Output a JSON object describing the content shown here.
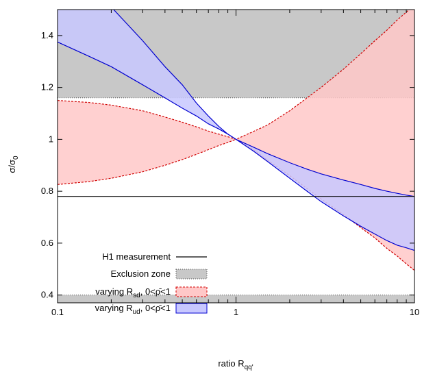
{
  "chart_data": {
    "type": "area",
    "title": "",
    "xlabel": {
      "base": "ratio R",
      "sub": "qq'"
    },
    "ylabel": {
      "base": "σ/σ",
      "sub": "0"
    },
    "x_scale": "log",
    "xlim": [
      0.1,
      10
    ],
    "ylim": [
      0.37,
      1.5
    ],
    "x_ticks": [
      0.1,
      1,
      10
    ],
    "x_tick_labels": [
      "0.1",
      "1",
      "10"
    ],
    "y_ticks": [
      0.4,
      0.6,
      0.8,
      1.0,
      1.2,
      1.4
    ],
    "y_tick_labels": [
      "0.4",
      "0.6",
      "0.8",
      "1",
      "1.2",
      "1.4"
    ],
    "grid": false,
    "legend_position": "bottom-left",
    "colors": {
      "exclusion_fill": "#c8c8c8",
      "sd_fill": "#ffc8c8",
      "sd_line": "#d00000",
      "ud_fill": "#c8c8ff",
      "ud_line": "#0000d0",
      "h1_line": "#000000"
    },
    "h1_measurement": 0.78,
    "exclusion_zone": {
      "upper_start": 1.16,
      "lower_end": 0.4
    },
    "series": [
      {
        "name": "varying R_sd, 0<ρ̄<1",
        "label_parts": [
          "varying R",
          "sd",
          ", 0<",
          "ρ̄",
          "<1"
        ],
        "style": "dashed",
        "x": [
          0.1,
          0.15,
          0.2,
          0.3,
          0.4,
          0.5,
          0.6,
          0.7,
          0.8,
          0.9,
          1,
          1.25,
          1.5,
          2,
          2.5,
          3,
          4,
          5,
          6,
          7,
          8,
          9,
          10
        ],
        "lower": [
          0.826,
          0.837,
          0.85,
          0.875,
          0.9,
          0.922,
          0.942,
          0.96,
          0.976,
          0.988,
          1.0,
          0.96,
          0.92,
          0.86,
          0.81,
          0.77,
          0.71,
          0.66,
          0.62,
          0.58,
          0.55,
          0.52,
          0.495
        ],
        "upper": [
          1.15,
          1.142,
          1.132,
          1.11,
          1.086,
          1.066,
          1.048,
          1.032,
          1.02,
          1.01,
          1.0,
          1.03,
          1.055,
          1.11,
          1.16,
          1.2,
          1.27,
          1.33,
          1.38,
          1.42,
          1.46,
          1.49,
          1.52
        ]
      },
      {
        "name": "varying R_ud, 0<ρ̄<1",
        "label_parts": [
          "varying R",
          "ud",
          ", 0<",
          "ρ̄",
          "<1"
        ],
        "style": "solid",
        "x": [
          0.1,
          0.15,
          0.2,
          0.3,
          0.4,
          0.5,
          0.6,
          0.7,
          0.8,
          0.9,
          1,
          1.25,
          1.5,
          2,
          2.5,
          3,
          4,
          5,
          6,
          7,
          8,
          9,
          10
        ],
        "lower": [
          1.375,
          1.32,
          1.28,
          1.21,
          1.16,
          1.12,
          1.09,
          1.06,
          1.04,
          1.02,
          1.0,
          0.955,
          0.915,
          0.85,
          0.8,
          0.76,
          0.705,
          0.665,
          0.635,
          0.61,
          0.592,
          0.582,
          0.572
        ],
        "upper": [
          1.6,
          1.56,
          1.51,
          1.38,
          1.28,
          1.21,
          1.14,
          1.09,
          1.05,
          1.02,
          1.0,
          0.97,
          0.945,
          0.91,
          0.885,
          0.867,
          0.843,
          0.826,
          0.811,
          0.8,
          0.792,
          0.785,
          0.78
        ]
      }
    ],
    "legend": [
      {
        "key": "h1",
        "text": "H1 measurement"
      },
      {
        "key": "exclusion",
        "text": "Exclusion zone"
      },
      {
        "key": "sd",
        "parts": [
          "varying R",
          "sd",
          ", 0<",
          "ρ̄",
          "<1"
        ]
      },
      {
        "key": "ud",
        "parts": [
          "varying R",
          "ud",
          ", 0<",
          "ρ̄",
          "<1"
        ]
      }
    ]
  }
}
